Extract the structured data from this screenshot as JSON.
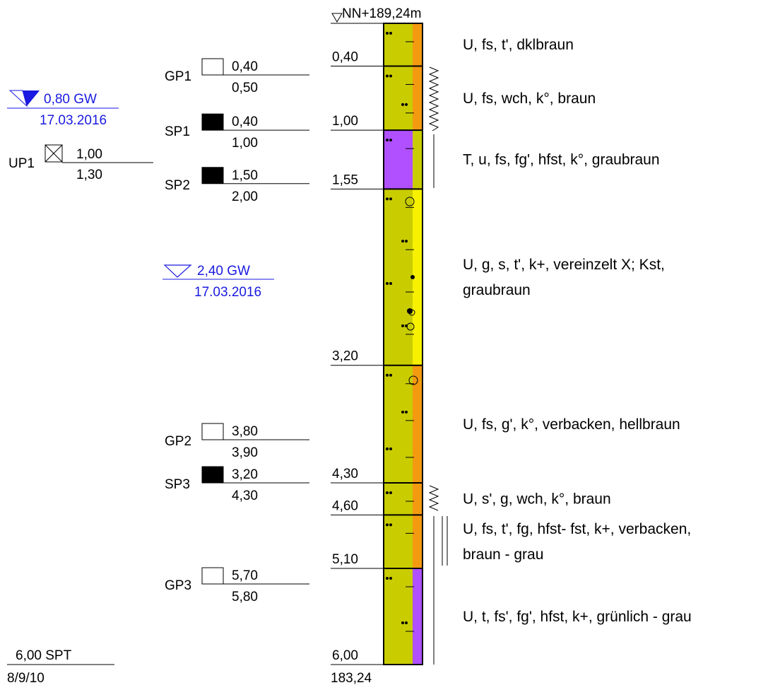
{
  "header": {
    "elevation_label": "NN+189,24m",
    "bottom_elevation": "183,24"
  },
  "colors": {
    "silt": "#c9cd00",
    "orange": "#f39a11",
    "purple": "#b050ff",
    "yellow": "#f7f000",
    "blue": "#1a1ae0",
    "marker": "#000000"
  },
  "layers": [
    {
      "top": 0.0,
      "bottom": 0.4,
      "depth_label": "0,40",
      "main_color": "silt",
      "side_color": "orange",
      "description": [
        "U, fs, t', dklbraun"
      ]
    },
    {
      "top": 0.4,
      "bottom": 1.0,
      "depth_label": "1,00",
      "main_color": "silt",
      "side_color": "orange",
      "description": [
        "U, fs, wch, k°, braun"
      ]
    },
    {
      "top": 1.0,
      "bottom": 1.55,
      "depth_label": "1,55",
      "main_color": "purple",
      "side_color": "silt",
      "description": [
        "T, u, fs, fg', hfst, k°, graubraun"
      ]
    },
    {
      "top": 1.55,
      "bottom": 3.2,
      "depth_label": "3,20",
      "main_color": "silt",
      "side_color": "yellow",
      "description": [
        "U, g, s, t', k+, vereinzelt X; Kst,",
        "graubraun"
      ]
    },
    {
      "top": 3.2,
      "bottom": 4.3,
      "depth_label": "4,30",
      "main_color": "silt",
      "side_color": "orange",
      "description": [
        "U, fs, g', k°, verbacken, hellbraun"
      ]
    },
    {
      "top": 4.3,
      "bottom": 4.6,
      "depth_label": "4,60",
      "main_color": "silt",
      "side_color": "orange",
      "description": [
        "U, s', g, wch, k°, braun"
      ]
    },
    {
      "top": 4.6,
      "bottom": 5.1,
      "depth_label": "5,10",
      "main_color": "silt",
      "side_color": "orange",
      "description": [
        "U, fs, t', fg, hfst- fst, k+, verbacken,",
        "braun - grau"
      ]
    },
    {
      "top": 5.1,
      "bottom": 6.0,
      "depth_label": "6,00",
      "main_color": "silt",
      "side_color": "purple",
      "description": [
        "U, t, fs', fg', hfst, k+, grünlich - grau"
      ]
    }
  ],
  "samples": [
    {
      "id": "GP1",
      "kind": "open",
      "from": "0,40",
      "to": "0,50",
      "depth": 0.4
    },
    {
      "id": "SP1",
      "kind": "filled",
      "from": "0,40",
      "to": "1,00",
      "depth": 1.0
    },
    {
      "id": "SP2",
      "kind": "filled",
      "from": "1,50",
      "to": "2,00",
      "depth": 1.5
    },
    {
      "id": "GP2",
      "kind": "open",
      "from": "3,80",
      "to": "3,90",
      "depth": 3.8
    },
    {
      "id": "SP3",
      "kind": "filled",
      "from": "3,20",
      "to": "4,30",
      "depth": 4.3
    },
    {
      "id": "GP3",
      "kind": "open",
      "from": "5,70",
      "to": "5,80",
      "depth": 5.7
    }
  ],
  "groundwater": [
    {
      "value": "0,80 GW",
      "date": "17.03.2016",
      "filled": true
    },
    {
      "value": "2,40 GW",
      "date": "17.03.2016",
      "filled": false
    }
  ],
  "up_sample": {
    "id": "UP1",
    "from": "1,00",
    "to": "1,30"
  },
  "spt": {
    "depth_label": "6,00 SPT",
    "blows": "8/9/10"
  }
}
